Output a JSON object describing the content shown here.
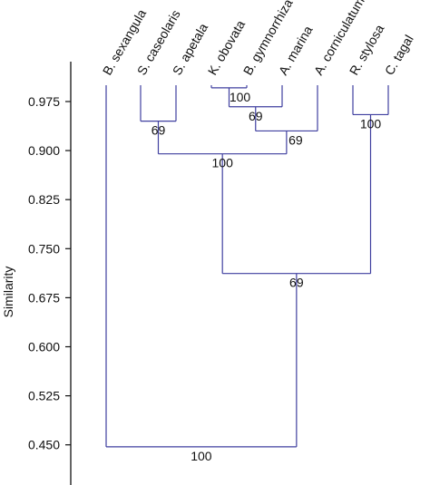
{
  "chart_data": {
    "type": "dendrogram",
    "ylabel": "Similarity",
    "yticks": [
      "0.975",
      "0.900",
      "0.825",
      "0.750",
      "0.675",
      "0.600",
      "0.525",
      "0.450"
    ],
    "leaves": [
      "B. sexangula",
      "S. caseolaris",
      "S. apetala",
      "K. obovata",
      "B. gymnorrhiza",
      "A. marina",
      "A. corniculatum",
      "R. stylosa",
      "C. tagal"
    ],
    "merges": [
      {
        "id": "m1",
        "members": [
          "K. obovata",
          "B. gymnorrhiza"
        ],
        "similarity": 0.996,
        "support": "100"
      },
      {
        "id": "m2",
        "members": [
          "m1",
          "A. marina"
        ],
        "similarity": 0.967,
        "support": "69"
      },
      {
        "id": "m3",
        "members": [
          "m2",
          "A. corniculatum"
        ],
        "similarity": 0.93,
        "support": "69"
      },
      {
        "id": "m4",
        "members": [
          "S. caseolaris",
          "S. apetala"
        ],
        "similarity": 0.945,
        "support": "69"
      },
      {
        "id": "m5",
        "members": [
          "m4",
          "m3"
        ],
        "similarity": 0.895,
        "support": "100"
      },
      {
        "id": "m6",
        "members": [
          "R. stylosa",
          "C. tagal"
        ],
        "similarity": 0.955,
        "support": "100"
      },
      {
        "id": "m7",
        "members": [
          "m5",
          "m6"
        ],
        "similarity": 0.712,
        "support": "69"
      },
      {
        "id": "m8",
        "members": [
          "B. sexangula",
          "m7"
        ],
        "similarity": 0.447,
        "support": "100"
      }
    ],
    "line_color": "#3f3f9f"
  }
}
